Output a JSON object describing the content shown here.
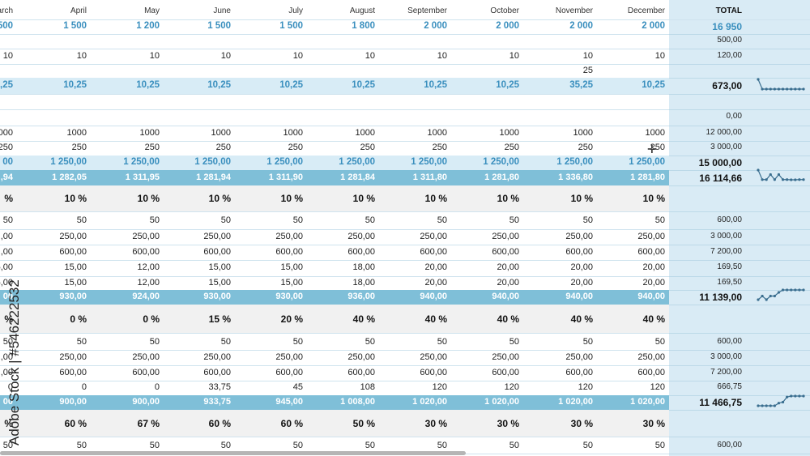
{
  "columns": [
    "arch",
    "April",
    "May",
    "June",
    "July",
    "August",
    "September",
    "October",
    "November",
    "December"
  ],
  "total_label": "TOTAL",
  "rows": [
    {
      "style": "budget",
      "values": [
        "500",
        "1 500",
        "1 200",
        "1 500",
        "1 500",
        "1 800",
        "2 000",
        "2 000",
        "2 000",
        "2 000"
      ],
      "total": "16 950"
    },
    {
      "style": "plain",
      "values": [
        "",
        "",
        "",
        "",
        "",
        "",
        "",
        "",
        "",
        ""
      ],
      "total": "500,00"
    },
    {
      "style": "plain",
      "values": [
        "10",
        "10",
        "10",
        "10",
        "10",
        "10",
        "10",
        "10",
        "10",
        "10"
      ],
      "total": "120,00"
    },
    {
      "style": "plain",
      "values": [
        "",
        "",
        "",
        "",
        "",
        "",
        "",
        "",
        "25",
        ""
      ],
      "total": ""
    },
    {
      "style": "acc",
      "values": [
        "),25",
        "10,25",
        "10,25",
        "10,25",
        "10,25",
        "10,25",
        "10,25",
        "10,25",
        "35,25",
        "10,25"
      ],
      "total": "673,00"
    },
    {
      "style": "plain",
      "values": [
        "",
        "",
        "",
        "",
        "",
        "",
        "",
        "",
        "",
        ""
      ],
      "total": ""
    },
    {
      "style": "plain",
      "values": [
        "",
        "",
        "",
        "",
        "",
        "",
        "",
        "",
        "",
        ""
      ],
      "total": "0,00"
    },
    {
      "style": "plain",
      "values": [
        "000",
        "1000",
        "1000",
        "1000",
        "1000",
        "1000",
        "1000",
        "1000",
        "1000",
        "1000"
      ],
      "total": "12 000,00"
    },
    {
      "style": "plain",
      "values": [
        "250",
        "250",
        "250",
        "250",
        "250",
        "250",
        "250",
        "250",
        "250",
        "250"
      ],
      "total": "3 000,00"
    },
    {
      "style": "acc",
      "values": [
        "00",
        "1 250,00",
        "1 250,00",
        "1 250,00",
        "1 250,00",
        "1 250,00",
        "1 250,00",
        "1 250,00",
        "1 250,00",
        "1 250,00"
      ],
      "total": "15 000,00"
    },
    {
      "style": "dark",
      "values": [
        ",94",
        "1 282,05",
        "1 311,95",
        "1 281,94",
        "1 311,90",
        "1 281,84",
        "1 311,80",
        "1 281,80",
        "1 336,80",
        "1 281,80"
      ],
      "total": "16 114,66"
    },
    {
      "style": "pct",
      "values": [
        "%",
        "10 %",
        "10 %",
        "10 %",
        "10 %",
        "10 %",
        "10 %",
        "10 %",
        "10 %",
        "10 %"
      ],
      "total": ""
    },
    {
      "style": "plain",
      "values": [
        "50",
        "50",
        "50",
        "50",
        "50",
        "50",
        "50",
        "50",
        "50",
        "50"
      ],
      "total": "600,00"
    },
    {
      "style": "plain",
      "values": [
        ",00",
        "250,00",
        "250,00",
        "250,00",
        "250,00",
        "250,00",
        "250,00",
        "250,00",
        "250,00",
        "250,00"
      ],
      "total": "3 000,00"
    },
    {
      "style": "plain",
      "values": [
        ",00",
        "600,00",
        "600,00",
        "600,00",
        "600,00",
        "600,00",
        "600,00",
        "600,00",
        "600,00",
        "600,00"
      ],
      "total": "7 200,00"
    },
    {
      "style": "plain",
      "values": [
        "5,00",
        "15,00",
        "12,00",
        "15,00",
        "15,00",
        "18,00",
        "20,00",
        "20,00",
        "20,00",
        "20,00"
      ],
      "total": "169,50"
    },
    {
      "style": "plain",
      "values": [
        "5,00",
        "15,00",
        "12,00",
        "15,00",
        "15,00",
        "18,00",
        "20,00",
        "20,00",
        "20,00",
        "20,00"
      ],
      "total": "169,50"
    },
    {
      "style": "dark",
      "values": [
        "00",
        "930,00",
        "924,00",
        "930,00",
        "930,00",
        "936,00",
        "940,00",
        "940,00",
        "940,00",
        "940,00"
      ],
      "total": "11 139,00"
    },
    {
      "style": "pct",
      "values": [
        "%",
        "0 %",
        "0 %",
        "15 %",
        "20 %",
        "40 %",
        "40 %",
        "40 %",
        "40 %",
        "40 %"
      ],
      "total": ""
    },
    {
      "style": "plain",
      "values": [
        "50",
        "50",
        "50",
        "50",
        "50",
        "50",
        "50",
        "50",
        "50",
        "50"
      ],
      "total": "600,00"
    },
    {
      "style": "plain",
      "values": [
        ",00",
        "250,00",
        "250,00",
        "250,00",
        "250,00",
        "250,00",
        "250,00",
        "250,00",
        "250,00",
        "250,00"
      ],
      "total": "3 000,00"
    },
    {
      "style": "plain",
      "values": [
        ",00",
        "600,00",
        "600,00",
        "600,00",
        "600,00",
        "600,00",
        "600,00",
        "600,00",
        "600,00",
        "600,00"
      ],
      "total": "7 200,00"
    },
    {
      "style": "plain",
      "values": [
        "0",
        "0",
        "0",
        "33,75",
        "45",
        "108",
        "120",
        "120",
        "120",
        "120"
      ],
      "total": "666,75"
    },
    {
      "style": "dark",
      "values": [
        "00",
        "900,00",
        "900,00",
        "933,75",
        "945,00",
        "1 008,00",
        "1 020,00",
        "1 020,00",
        "1 020,00",
        "1 020,00"
      ],
      "total": "11 466,75"
    },
    {
      "style": "pct",
      "values": [
        "%",
        "60 %",
        "67 %",
        "60 %",
        "60 %",
        "50 %",
        "30 %",
        "30 %",
        "30 %",
        "30 %"
      ],
      "total": ""
    },
    {
      "style": "plain",
      "values": [
        "50",
        "50",
        "50",
        "50",
        "50",
        "50",
        "50",
        "50",
        "50",
        "50"
      ],
      "total": "600,00"
    }
  ],
  "sparklines": [
    {
      "values": [
        24,
        10.25,
        10.25,
        10.25,
        10.25,
        10.25,
        10.25,
        10.25,
        10.25,
        10.25,
        10.25,
        10.25
      ],
      "color": "#3a6e8f"
    },
    {
      "values": [
        1336,
        1282,
        1282,
        1311,
        1282,
        1311,
        1282,
        1282,
        1281,
        1281,
        1282,
        1282
      ],
      "color": "#3a6e8f"
    },
    {
      "values": [
        924,
        930,
        924,
        930,
        930,
        936,
        940,
        940,
        940,
        940,
        940,
        940
      ],
      "color": "#3a6e8f"
    },
    {
      "values": [
        900,
        900,
        900,
        900,
        900,
        933,
        945,
        1008,
        1020,
        1020,
        1020,
        1020
      ],
      "color": "#3a6e8f"
    }
  ],
  "watermark": "Adobe Stock | #546222532",
  "colors": {
    "accent": "#3a8fbe",
    "band_dark": "#7fbfd8",
    "band_light": "#d8ecf6",
    "total_col": "#d9ebf5"
  }
}
